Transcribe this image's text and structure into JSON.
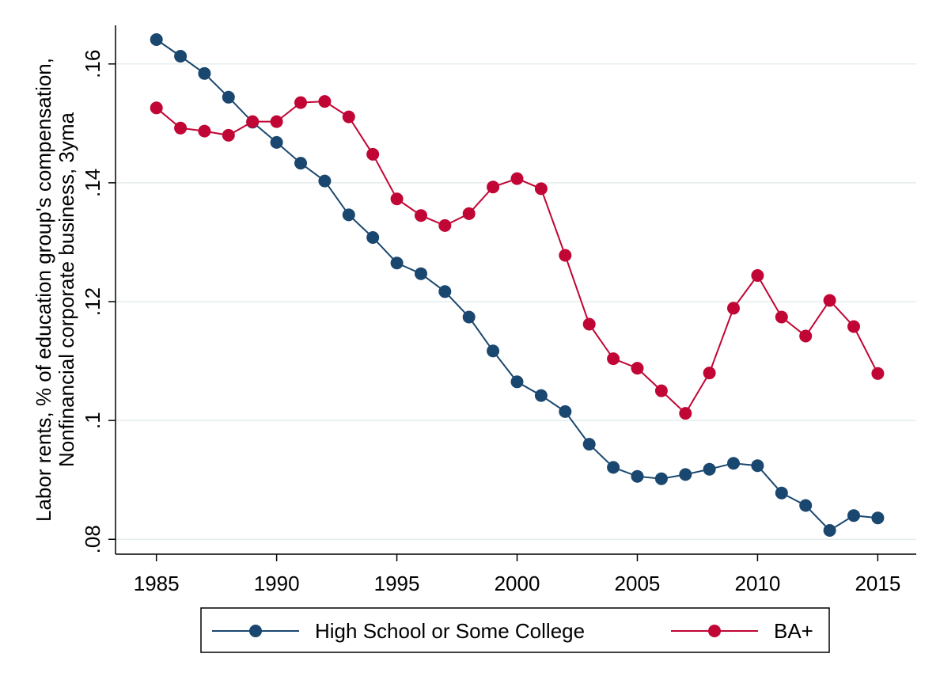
{
  "chart_data": {
    "type": "line",
    "title": "",
    "xlabel": "",
    "ylabel_lines": [
      "Labor rents, % of education group's compensation,",
      "Nonfinancial corporate business, 3yma"
    ],
    "x": [
      1985,
      1986,
      1987,
      1988,
      1989,
      1990,
      1991,
      1992,
      1993,
      1994,
      1995,
      1996,
      1997,
      1998,
      1999,
      2000,
      2001,
      2002,
      2003,
      2004,
      2005,
      2006,
      2007,
      2008,
      2009,
      2010,
      2011,
      2012,
      2013,
      2014,
      2015
    ],
    "xlim": [
      1983.3,
      2016.6
    ],
    "ylim": [
      0.0775,
      0.1665
    ],
    "xticks": [
      1985,
      1990,
      1995,
      2000,
      2005,
      2010,
      2015
    ],
    "xtick_labels": [
      "1985",
      "1990",
      "1995",
      "2000",
      "2005",
      "2010",
      "2015"
    ],
    "yticks": [
      0.08,
      0.1,
      0.12,
      0.14,
      0.16
    ],
    "ytick_labels": [
      ".08",
      ".1",
      ".12",
      ".14",
      ".16"
    ],
    "grid": true,
    "legend_position": "bottom",
    "series": [
      {
        "name": "High School or Some College",
        "color": "#1a476f",
        "values": [
          0.1641,
          0.1613,
          0.1584,
          0.1544,
          0.1502,
          0.1468,
          0.1433,
          0.1403,
          0.1346,
          0.1308,
          0.1265,
          0.1247,
          0.1217,
          0.1174,
          0.1117,
          0.1065,
          0.1042,
          0.1015,
          0.096,
          0.0921,
          0.0906,
          0.0902,
          0.0909,
          0.0918,
          0.0928,
          0.0924,
          0.0878,
          0.0857,
          0.0815,
          0.084,
          0.0836
        ]
      },
      {
        "name": "BA+",
        "color": "#c10534",
        "values": [
          0.1526,
          0.1492,
          0.1487,
          0.148,
          0.1503,
          0.1503,
          0.1535,
          0.1537,
          0.1511,
          0.1448,
          0.1373,
          0.1345,
          0.1328,
          0.1348,
          0.1393,
          0.1407,
          0.139,
          0.1278,
          0.1162,
          0.1104,
          0.1088,
          0.105,
          0.1012,
          0.108,
          0.1189,
          0.1244,
          0.1174,
          0.1142,
          0.1202,
          0.1158,
          0.1079
        ]
      }
    ]
  }
}
